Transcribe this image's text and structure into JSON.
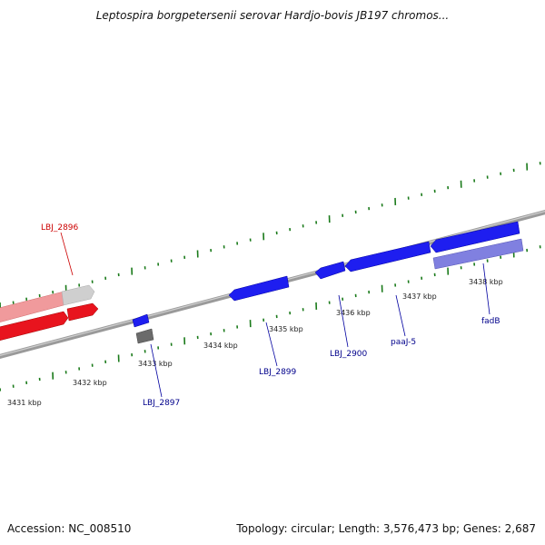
{
  "title": "Leptospira borgpetersenii serovar Hardjo-bovis JB197 chromos...",
  "footer": {
    "accession": "Accession: NC_008510",
    "summary": "Topology: circular; Length: 3,576,473 bp; Genes: 2,687"
  },
  "colors": {
    "backbone": "#808080",
    "tick": "#1a7a1a",
    "gene_red": "#e8141e",
    "gene_pink": "#f08a8c",
    "gene_blue": "#1e1ef0",
    "gene_lavender": "#8080e0",
    "gene_gray": "#6b6b6b",
    "label_red": "#cc0000",
    "label_blue": "#00008b"
  },
  "scale": {
    "ticks": [
      {
        "label": "3431 kbp",
        "kbp": 3431
      },
      {
        "label": "3432 kbp",
        "kbp": 3432
      },
      {
        "label": "3433 kbp",
        "kbp": 3433
      },
      {
        "label": "3434 kbp",
        "kbp": 3434
      },
      {
        "label": "3435 kbp",
        "kbp": 3435
      },
      {
        "label": "3436 kbp",
        "kbp": 3436
      },
      {
        "label": "3437 kbp",
        "kbp": 3437
      },
      {
        "label": "3438 kbp",
        "kbp": 3438
      }
    ]
  },
  "gene_labels": [
    {
      "id": "lbl-2896",
      "text": "LBJ_2896",
      "color": "red"
    },
    {
      "id": "lbl-2897",
      "text": "LBJ_2897",
      "color": "blue"
    },
    {
      "id": "lbl-2899",
      "text": "LBJ_2899",
      "color": "blue"
    },
    {
      "id": "lbl-2900",
      "text": "LBJ_2900",
      "color": "blue"
    },
    {
      "id": "lbl-paaj5",
      "text": "paaJ-5",
      "color": "blue"
    },
    {
      "id": "lbl-fadb",
      "text": "fadB",
      "color": "blue"
    }
  ]
}
